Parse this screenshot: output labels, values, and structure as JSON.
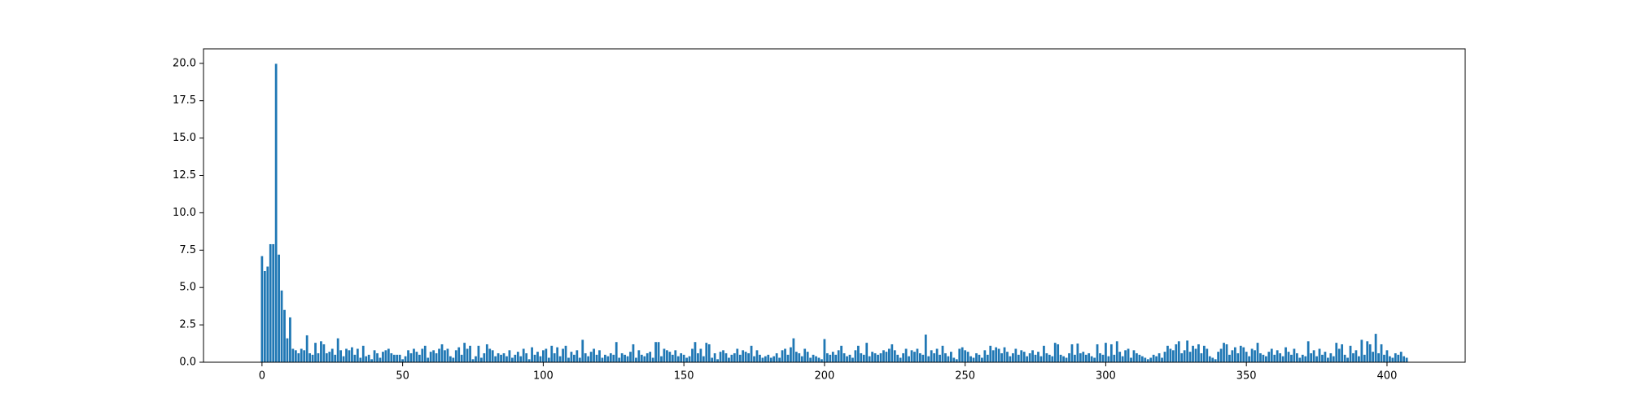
{
  "chart_data": {
    "type": "bar",
    "color": "#1f77b4",
    "x": [
      0,
      1,
      2,
      3,
      4,
      5,
      6,
      7,
      8,
      9,
      10,
      11,
      12,
      13,
      14,
      15,
      16,
      17,
      18,
      19,
      20,
      21,
      22,
      23,
      24,
      25,
      26,
      27,
      28,
      29,
      30,
      31,
      32,
      33,
      34,
      35,
      36,
      37,
      38,
      39,
      40,
      41,
      42,
      43,
      44,
      45,
      46,
      47,
      48,
      49,
      50,
      51,
      52,
      53,
      54,
      55,
      56,
      57,
      58,
      59,
      60,
      61,
      62,
      63,
      64,
      65,
      66,
      67,
      68,
      69,
      70,
      71,
      72,
      73,
      74,
      75,
      76,
      77,
      78,
      79,
      80,
      81,
      82,
      83,
      84,
      85,
      86,
      87,
      88,
      89,
      90,
      91,
      92,
      93,
      94,
      95,
      96,
      97,
      98,
      99,
      100,
      101,
      102,
      103,
      104,
      105,
      106,
      107,
      108,
      109,
      110,
      111,
      112,
      113,
      114,
      115,
      116,
      117,
      118,
      119,
      120,
      121,
      122,
      123,
      124,
      125,
      126,
      127,
      128,
      129,
      130,
      131,
      132,
      133,
      134,
      135,
      136,
      137,
      138,
      139,
      140,
      141,
      142,
      143,
      144,
      145,
      146,
      147,
      148,
      149,
      150,
      151,
      152,
      153,
      154,
      155,
      156,
      157,
      158,
      159,
      160,
      161,
      162,
      163,
      164,
      165,
      166,
      167,
      168,
      169,
      170,
      171,
      172,
      173,
      174,
      175,
      176,
      177,
      178,
      179,
      180,
      181,
      182,
      183,
      184,
      185,
      186,
      187,
      188,
      189,
      190,
      191,
      192,
      193,
      194,
      195,
      196,
      197,
      198,
      199,
      200,
      201,
      202,
      203,
      204,
      205,
      206,
      207,
      208,
      209,
      210,
      211,
      212,
      213,
      214,
      215,
      216,
      217,
      218,
      219,
      220,
      221,
      222,
      223,
      224,
      225,
      226,
      227,
      228,
      229,
      230,
      231,
      232,
      233,
      234,
      235,
      236,
      237,
      238,
      239,
      240,
      241,
      242,
      243,
      244,
      245,
      246,
      247,
      248,
      249,
      250,
      251,
      252,
      253,
      254,
      255,
      256,
      257,
      258,
      259,
      260,
      261,
      262,
      263,
      264,
      265,
      266,
      267,
      268,
      269,
      270,
      271,
      272,
      273,
      274,
      275,
      276,
      277,
      278,
      279,
      280,
      281,
      282,
      283,
      284,
      285,
      286,
      287,
      288,
      289,
      290,
      291,
      292,
      293,
      294,
      295,
      296,
      297,
      298,
      299,
      300,
      301,
      302,
      303,
      304,
      305,
      306,
      307,
      308,
      309,
      310,
      311,
      312,
      313,
      314,
      315,
      316,
      317,
      318,
      319,
      320,
      321,
      322,
      323,
      324,
      325,
      326,
      327,
      328,
      329,
      330,
      331,
      332,
      333,
      334,
      335,
      336,
      337,
      338,
      339,
      340,
      341,
      342,
      343,
      344,
      345,
      346,
      347,
      348,
      349,
      350,
      351,
      352,
      353,
      354,
      355,
      356,
      357,
      358,
      359,
      360,
      361,
      362,
      363,
      364,
      365,
      366,
      367,
      368,
      369,
      370,
      371,
      372,
      373,
      374,
      375,
      376,
      377,
      378,
      379,
      380,
      381,
      382,
      383,
      384,
      385,
      386,
      387,
      388,
      389,
      390,
      391,
      392,
      393,
      394,
      395,
      396,
      397,
      398,
      399,
      400,
      401,
      402,
      403,
      404,
      405,
      406,
      407
    ],
    "values": [
      7.1,
      6.1,
      6.4,
      7.9,
      7.9,
      19.97,
      7.2,
      4.8,
      3.5,
      1.6,
      3.0,
      0.9,
      0.8,
      0.6,
      0.9,
      0.8,
      1.8,
      0.6,
      0.5,
      1.3,
      0.6,
      1.4,
      1.2,
      0.6,
      0.7,
      0.9,
      0.5,
      1.6,
      0.8,
      0.4,
      0.9,
      0.8,
      1.0,
      0.5,
      0.9,
      0.3,
      1.1,
      0.4,
      0.5,
      0.2,
      0.8,
      0.6,
      0.3,
      0.7,
      0.8,
      0.9,
      0.6,
      0.5,
      0.5,
      0.5,
      0.2,
      0.4,
      0.8,
      0.6,
      0.9,
      0.7,
      0.5,
      0.9,
      1.1,
      0.3,
      0.7,
      0.8,
      0.6,
      0.9,
      1.2,
      0.8,
      0.9,
      0.4,
      0.3,
      0.8,
      1.0,
      0.5,
      1.3,
      0.9,
      1.1,
      0.2,
      0.4,
      1.1,
      0.3,
      0.6,
      1.2,
      0.9,
      0.8,
      0.4,
      0.6,
      0.5,
      0.6,
      0.4,
      0.8,
      0.3,
      0.5,
      0.7,
      0.4,
      0.9,
      0.6,
      0.2,
      1.0,
      0.5,
      0.7,
      0.4,
      0.8,
      0.9,
      0.3,
      1.1,
      0.6,
      1.0,
      0.4,
      0.9,
      1.1,
      0.3,
      0.7,
      0.5,
      0.8,
      0.3,
      1.5,
      0.6,
      0.4,
      0.7,
      0.9,
      0.5,
      0.8,
      0.3,
      0.5,
      0.4,
      0.6,
      0.5,
      1.35,
      0.3,
      0.6,
      0.5,
      0.4,
      0.7,
      1.2,
      0.3,
      0.8,
      0.5,
      0.4,
      0.6,
      0.7,
      0.3,
      1.35,
      1.35,
      0.4,
      0.9,
      0.8,
      0.7,
      0.5,
      0.8,
      0.4,
      0.6,
      0.5,
      0.3,
      0.4,
      0.9,
      1.35,
      0.6,
      0.9,
      0.4,
      1.3,
      1.2,
      0.3,
      0.6,
      0.2,
      0.7,
      0.8,
      0.6,
      0.3,
      0.5,
      0.6,
      0.9,
      0.5,
      0.8,
      0.7,
      0.6,
      1.1,
      0.4,
      0.8,
      0.5,
      0.3,
      0.4,
      0.5,
      0.3,
      0.4,
      0.6,
      0.3,
      0.8,
      0.9,
      0.5,
      1.0,
      1.6,
      0.7,
      0.6,
      0.4,
      0.9,
      0.7,
      0.3,
      0.5,
      0.4,
      0.3,
      0.2,
      1.55,
      0.6,
      0.5,
      0.7,
      0.5,
      0.8,
      1.1,
      0.6,
      0.4,
      0.5,
      0.3,
      0.8,
      1.1,
      0.6,
      0.5,
      1.3,
      0.4,
      0.7,
      0.6,
      0.5,
      0.6,
      0.8,
      0.7,
      0.9,
      1.2,
      0.8,
      0.5,
      0.3,
      0.6,
      0.9,
      0.4,
      0.8,
      0.7,
      0.9,
      0.6,
      0.5,
      1.85,
      0.4,
      0.8,
      0.6,
      0.9,
      0.5,
      1.1,
      0.6,
      0.4,
      0.7,
      0.3,
      0.2,
      0.9,
      1.0,
      0.8,
      0.7,
      0.4,
      0.3,
      0.6,
      0.5,
      0.3,
      0.8,
      0.5,
      1.1,
      0.8,
      1.0,
      0.9,
      0.6,
      1.0,
      0.7,
      0.4,
      0.6,
      0.9,
      0.5,
      0.8,
      0.7,
      0.4,
      0.6,
      0.8,
      0.5,
      0.7,
      0.4,
      1.1,
      0.6,
      0.5,
      0.4,
      1.3,
      1.2,
      0.5,
      0.4,
      0.3,
      0.6,
      1.2,
      0.5,
      1.25,
      0.6,
      0.7,
      0.5,
      0.6,
      0.4,
      0.3,
      1.2,
      0.6,
      0.5,
      1.3,
      0.4,
      1.2,
      0.5,
      1.4,
      0.7,
      0.4,
      0.8,
      0.9,
      0.3,
      0.8,
      0.6,
      0.5,
      0.4,
      0.3,
      0.2,
      0.3,
      0.5,
      0.4,
      0.6,
      0.3,
      0.7,
      1.1,
      0.9,
      0.8,
      1.2,
      1.4,
      0.6,
      0.8,
      1.45,
      0.7,
      1.1,
      0.9,
      1.2,
      0.6,
      1.1,
      0.9,
      0.4,
      0.3,
      0.2,
      0.7,
      0.9,
      1.3,
      1.2,
      0.5,
      0.8,
      1.0,
      0.6,
      1.1,
      1.0,
      0.7,
      0.4,
      0.9,
      0.8,
      1.3,
      0.6,
      0.5,
      0.4,
      0.7,
      0.9,
      0.5,
      0.8,
      0.6,
      0.4,
      1.0,
      0.7,
      0.5,
      0.9,
      0.6,
      0.3,
      0.5,
      0.4,
      1.4,
      0.6,
      0.8,
      0.4,
      0.9,
      0.5,
      0.7,
      0.3,
      0.6,
      0.4,
      1.3,
      0.9,
      1.2,
      0.5,
      0.3,
      1.1,
      0.6,
      0.8,
      0.4,
      1.5,
      0.5,
      1.4,
      1.2,
      0.7,
      1.9,
      0.6,
      1.2,
      0.5,
      0.8,
      0.4,
      0.3,
      0.6,
      0.5,
      0.7,
      0.4,
      0.3
    ],
    "xlim": [
      -20.8,
      427.8
    ],
    "xticks": [
      0,
      50,
      100,
      150,
      200,
      250,
      300,
      350,
      400
    ],
    "ylim": [
      0,
      20.97
    ],
    "yticks": [
      {
        "value": 0,
        "label": "0.0"
      },
      {
        "value": 2.5,
        "label": "2.5"
      },
      {
        "value": 5,
        "label": "5.0"
      },
      {
        "value": 7.5,
        "label": "7.5"
      },
      {
        "value": 10,
        "label": "10.0"
      },
      {
        "value": 12.5,
        "label": "12.5"
      },
      {
        "value": 15,
        "label": "15.0"
      },
      {
        "value": 17.5,
        "label": "17.5"
      },
      {
        "value": 20,
        "label": "20.0"
      }
    ]
  }
}
